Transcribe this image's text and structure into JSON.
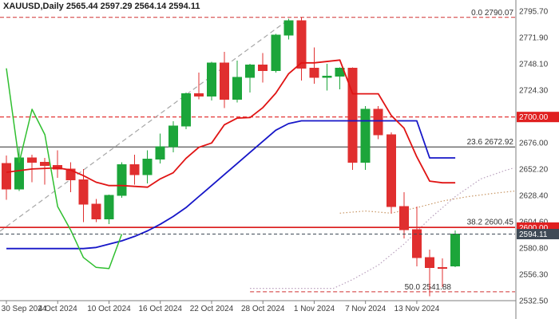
{
  "header": {
    "title": "XAUUSD,Daily 2565.44 2597.29 2564.14 2594.11"
  },
  "colors": {
    "background": "#ffffff",
    "axis_line": "#7e7e7e",
    "axis_text": "#3c3c3c",
    "bull": "#1ca53a",
    "bear": "#e02f2f",
    "tenkan": "#e01414",
    "kijun": "#1616c8",
    "chikou": "#2fbf2f",
    "senkou_a": "#c89664",
    "senkou_b": "#b9a0bd",
    "trendline": "#a6a6a6",
    "fib_red": "#d03030",
    "fib_dark": "#2f2f2f",
    "badge_red": "#e02020",
    "badge_price": "#3f4a56"
  },
  "chart_data": {
    "type": "candlestick",
    "symbol": "XAUUSD",
    "timeframe": "Daily",
    "title": "XAUUSD,Daily",
    "current_ohlc": {
      "open": "2565.44",
      "high": "2597.29",
      "low": "2564.14",
      "close": "2594.11"
    },
    "y_axis": {
      "ticks": [
        "2795.70",
        "2771.90",
        "2748.10",
        "2724.30",
        "2700.50",
        "2676.00",
        "2652.20",
        "2628.40",
        "2604.60",
        "2580.80",
        "2556.30",
        "2532.50"
      ]
    },
    "x_axis": {
      "labels": [
        {
          "index": 0,
          "text": "30 Sep 2024"
        },
        {
          "index": 4,
          "text": "4 Oct 2024"
        },
        {
          "index": 8,
          "text": "10 Oct 2024"
        },
        {
          "index": 12,
          "text": "16 Oct 2024"
        },
        {
          "index": 16,
          "text": "22 Oct 2024"
        },
        {
          "index": 20,
          "text": "28 Oct 2024"
        },
        {
          "index": 24,
          "text": "1 Nov 2024"
        },
        {
          "index": 28,
          "text": "7 Nov 2024"
        },
        {
          "index": 32,
          "text": "13 Nov 2024"
        }
      ]
    },
    "candles": [
      [
        2658,
        2665,
        2625,
        2635
      ],
      [
        2635,
        2673,
        2633,
        2663
      ],
      [
        2663,
        2666,
        2641,
        2659
      ],
      [
        2659,
        2663,
        2639,
        2656
      ],
      [
        2656,
        2670,
        2645,
        2653
      ],
      [
        2653,
        2659,
        2632,
        2643
      ],
      [
        2643,
        2653,
        2605,
        2621
      ],
      [
        2621,
        2626,
        2605,
        2608
      ],
      [
        2608,
        2630,
        2603,
        2629
      ],
      [
        2629,
        2659,
        2627,
        2657
      ],
      [
        2657,
        2666,
        2639,
        2648
      ],
      [
        2648,
        2670,
        2640,
        2662
      ],
      [
        2662,
        2685,
        2658,
        2673
      ],
      [
        2673,
        2696,
        2668,
        2692
      ],
      [
        2692,
        2722,
        2689,
        2721
      ],
      [
        2721,
        2740,
        2716,
        2719
      ],
      [
        2719,
        2750,
        2715,
        2749
      ],
      [
        2749,
        2759,
        2708,
        2716
      ],
      [
        2716,
        2751,
        2713,
        2736
      ],
      [
        2736,
        2748,
        2722,
        2747
      ],
      [
        2747,
        2758,
        2731,
        2742
      ],
      [
        2742,
        2775,
        2740,
        2774
      ],
      [
        2774,
        2789,
        2770,
        2787
      ],
      [
        2787,
        2790,
        2733,
        2744
      ],
      [
        2744,
        2763,
        2730,
        2736
      ],
      [
        2736,
        2748,
        2724,
        2737
      ],
      [
        2737,
        2745,
        2725,
        2744
      ],
      [
        2744,
        2745,
        2652,
        2659
      ],
      [
        2659,
        2710,
        2652,
        2707
      ],
      [
        2707,
        2710,
        2680,
        2684
      ],
      [
        2684,
        2686,
        2613,
        2619
      ],
      [
        2619,
        2632,
        2590,
        2598
      ],
      [
        2598,
        2619,
        2565,
        2573
      ],
      [
        2573,
        2580,
        2538,
        2564
      ],
      [
        2564,
        2572,
        2546,
        2563
      ],
      [
        2565.44,
        2597.29,
        2564.14,
        2594.11
      ]
    ],
    "overlays": {
      "tenkan": {
        "name": "tenkan-sen",
        "width": 1.8,
        "points": [
          [
            0,
            2650
          ],
          [
            2,
            2653
          ],
          [
            4,
            2654
          ],
          [
            5,
            2652
          ],
          [
            6,
            2647
          ],
          [
            7,
            2641
          ],
          [
            8,
            2638
          ],
          [
            9,
            2638
          ],
          [
            11,
            2636.5
          ],
          [
            12,
            2644
          ],
          [
            13,
            2649.5
          ],
          [
            14,
            2662.5
          ],
          [
            15,
            2672.5
          ],
          [
            16,
            2676.5
          ],
          [
            17,
            2693
          ],
          [
            18,
            2699
          ],
          [
            19,
            2699.5
          ],
          [
            20,
            2708.5
          ],
          [
            21,
            2721.5
          ],
          [
            22,
            2739
          ],
          [
            23,
            2749
          ],
          [
            24,
            2749
          ],
          [
            26,
            2751.5
          ],
          [
            27,
            2721
          ],
          [
            29,
            2721
          ],
          [
            30,
            2701.5
          ],
          [
            31,
            2690
          ],
          [
            32,
            2664
          ],
          [
            33,
            2642
          ],
          [
            34,
            2640.5
          ],
          [
            35,
            2640.5
          ]
        ]
      },
      "kijun": {
        "name": "kijun-sen",
        "width": 1.8,
        "points": [
          [
            0,
            2581
          ],
          [
            6,
            2581
          ],
          [
            7,
            2582
          ],
          [
            8,
            2585
          ],
          [
            9,
            2588
          ],
          [
            10,
            2592
          ],
          [
            11,
            2597
          ],
          [
            12,
            2603
          ],
          [
            13,
            2610
          ],
          [
            14,
            2618
          ],
          [
            15,
            2628
          ],
          [
            16,
            2638
          ],
          [
            17,
            2648
          ],
          [
            18,
            2658
          ],
          [
            19,
            2668
          ],
          [
            20,
            2678
          ],
          [
            21,
            2688
          ],
          [
            22,
            2694
          ],
          [
            23,
            2696.5
          ],
          [
            32,
            2696.5
          ],
          [
            33,
            2663
          ],
          [
            35,
            2663
          ]
        ]
      },
      "chikou": {
        "name": "chikou-span",
        "width": 1.5,
        "points": [
          [
            0,
            2744
          ],
          [
            1,
            2659
          ],
          [
            2,
            2707
          ],
          [
            3,
            2684
          ],
          [
            4,
            2619
          ],
          [
            5,
            2598
          ],
          [
            6,
            2573
          ],
          [
            7,
            2564
          ],
          [
            8,
            2563
          ],
          [
            9,
            2594.11
          ]
        ]
      },
      "senkou_a": {
        "name": "senkou-span-a",
        "width": 1.2,
        "points": [
          [
            26,
            2613
          ],
          [
            28,
            2615
          ],
          [
            30,
            2613
          ],
          [
            32,
            2618
          ],
          [
            34,
            2624
          ],
          [
            36,
            2628
          ],
          [
            38,
            2631
          ],
          [
            39.6,
            2633
          ]
        ]
      },
      "senkou_b": {
        "name": "senkou-span-b",
        "width": 1.2,
        "points": [
          [
            19,
            2545
          ],
          [
            25.5,
            2545
          ],
          [
            27,
            2553
          ],
          [
            29,
            2566
          ],
          [
            31,
            2585
          ],
          [
            33,
            2608
          ],
          [
            35,
            2628
          ],
          [
            37,
            2644
          ],
          [
            39,
            2652
          ],
          [
            39.6,
            2654
          ]
        ]
      }
    },
    "levels": {
      "hlines": [
        {
          "price": 2700.0,
          "label": "2700.00",
          "dash": true
        },
        {
          "price": 2600.0,
          "label": "2600.00",
          "dash": false
        }
      ],
      "current_price": {
        "price": 2594.11,
        "label": "2594.11",
        "dash": true
      },
      "fibonacci": [
        {
          "level": "0.0",
          "price": 2790.07,
          "text": "0.0 2790.07",
          "dash": true,
          "color": "red"
        },
        {
          "level": "23.6",
          "price": 2672.92,
          "text": "23.6 2672.92",
          "dash": false,
          "color": "dark"
        },
        {
          "level": "38.2",
          "price": 2600.45,
          "text": "38.2 2600.45",
          "dash": false,
          "color": "red"
        },
        {
          "level": "50.0",
          "price": 2541.88,
          "text": "50.0 2541.88",
          "dash": true,
          "color": "red",
          "from_index": 19,
          "label_end_x": 565
        }
      ],
      "trendline": {
        "dash": true,
        "points": [
          [
            -0.5,
            2596.7
          ],
          [
            22.05,
            2788.5
          ]
        ]
      }
    }
  }
}
